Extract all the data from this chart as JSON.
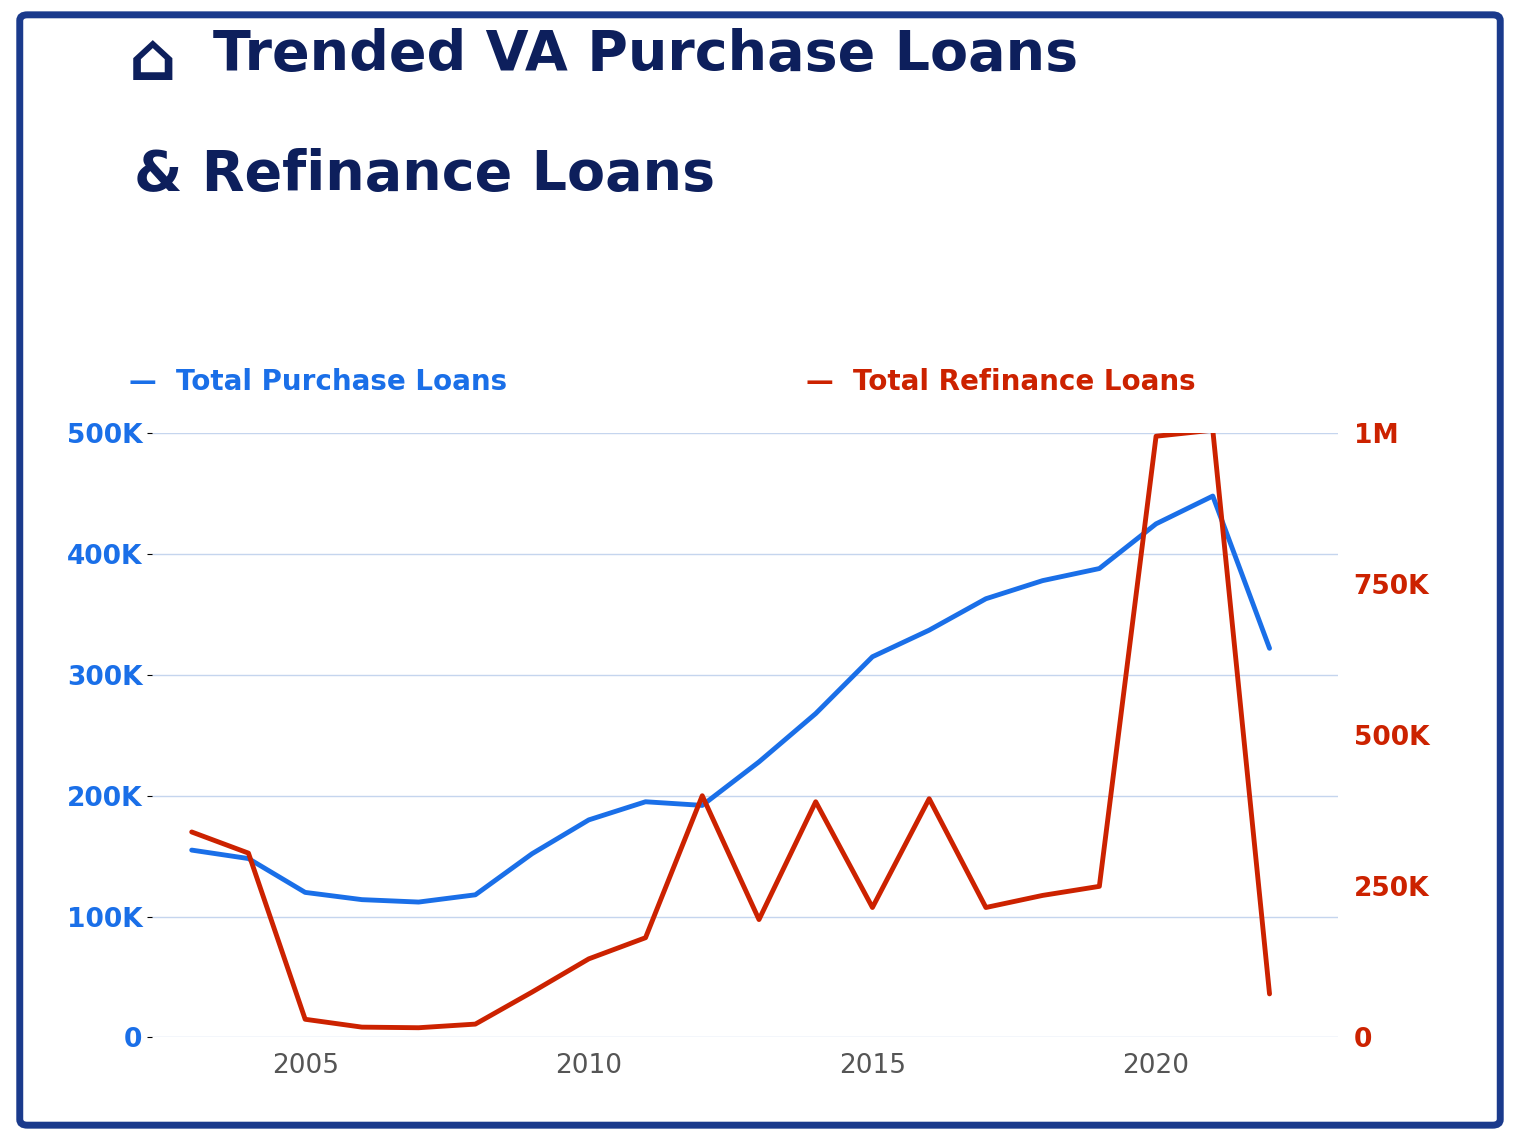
{
  "title_line1": "Trended VA Purchase Loans",
  "title_line2": "& Refinance Loans",
  "title_color": "#0d1f5c",
  "title_fontsize": 40,
  "background_color": "#ffffff",
  "border_color": "#1a3a8c",
  "legend_purchase_label": "Total Purchase Loans",
  "legend_refi_label": "Total Refinance Loans",
  "purchase_color": "#1a6fe8",
  "refi_color": "#cc2200",
  "legend_purchase_color": "#1a6fe8",
  "legend_refi_color": "#cc2200",
  "legend_fontsize": 20,
  "years": [
    2003,
    2004,
    2005,
    2006,
    2007,
    2008,
    2009,
    2010,
    2011,
    2012,
    2013,
    2014,
    2015,
    2016,
    2017,
    2018,
    2019,
    2020,
    2021,
    2022
  ],
  "purchase_loans": [
    155000,
    148000,
    120000,
    114000,
    112000,
    118000,
    152000,
    180000,
    195000,
    192000,
    228000,
    268000,
    315000,
    337000,
    363000,
    378000,
    388000,
    425000,
    448000,
    322000
  ],
  "refi_loans": [
    340000,
    305000,
    30000,
    17000,
    16000,
    22000,
    75000,
    130000,
    165000,
    400000,
    195000,
    390000,
    215000,
    395000,
    215000,
    235000,
    250000,
    995000,
    1005000,
    72000
  ],
  "left_ylim": [
    0,
    500000
  ],
  "right_ylim": [
    0,
    1000000
  ],
  "left_yticks": [
    0,
    100000,
    200000,
    300000,
    400000,
    500000
  ],
  "left_yticklabels": [
    "0",
    "100K",
    "200K",
    "300K",
    "400K",
    "500K"
  ],
  "right_yticks": [
    0,
    250000,
    500000,
    750000,
    1000000
  ],
  "right_yticklabels": [
    "0",
    "250K",
    "500K",
    "750K",
    "1M"
  ],
  "xticks": [
    2005,
    2010,
    2015,
    2020
  ],
  "xticklabels": [
    "2005",
    "2010",
    "2015",
    "2020"
  ],
  "xlim": [
    2002.3,
    2023.2
  ],
  "grid_color": "#c5d5ee",
  "tick_color_left": "#1a6fe8",
  "tick_color_right": "#cc2200",
  "xtick_color": "#555555",
  "axis_tick_fontsize": 19,
  "line_width": 3.5,
  "border_lw": 5
}
